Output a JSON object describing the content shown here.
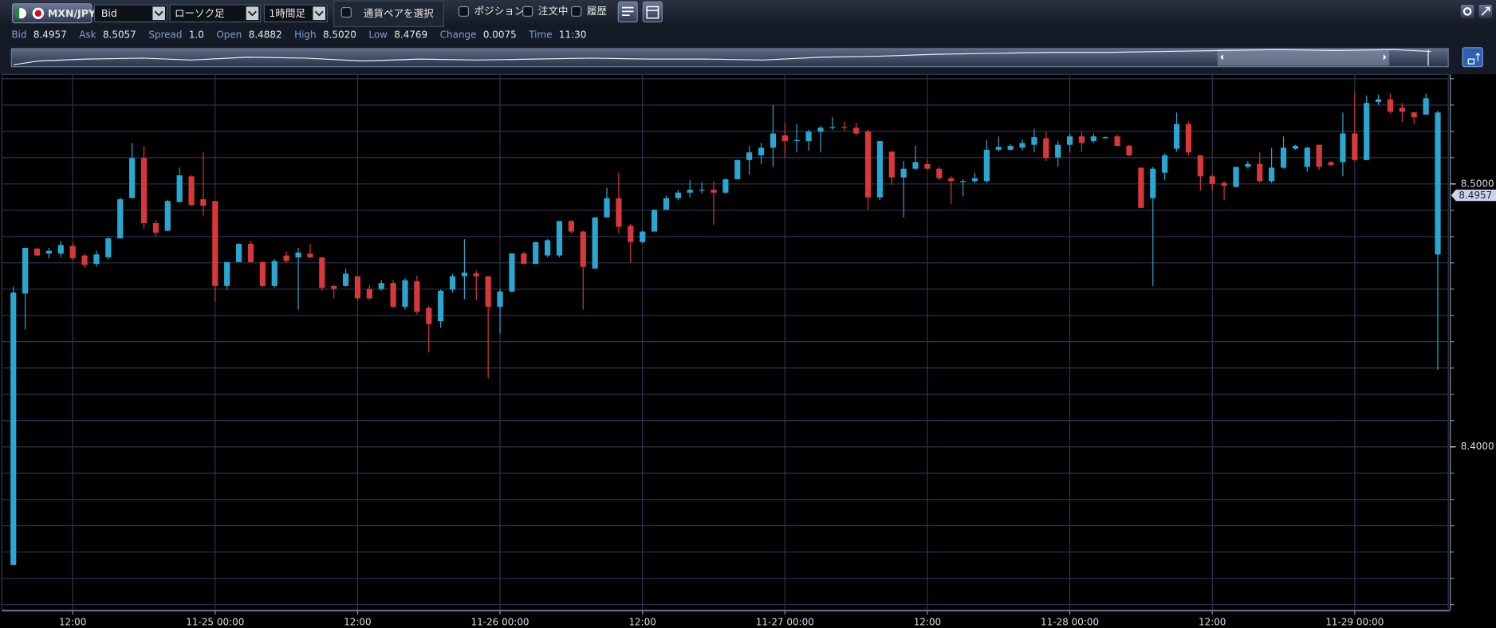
{
  "toolbar": {
    "symbol": "MXN/JPY",
    "price_type": "Bid",
    "chart_type": "ローソク足",
    "timeframe": "1時間足",
    "pair_select": "通貨ペアを選択",
    "toggles": [
      "ポジション",
      "注文中",
      "履歴"
    ]
  },
  "quote": [
    {
      "label": "Bid",
      "value": "8.4957"
    },
    {
      "label": "Ask",
      "value": "8.5057"
    },
    {
      "label": "Spread",
      "value": "1.0"
    },
    {
      "label": "Open",
      "value": "8.4882"
    },
    {
      "label": "High",
      "value": "8.5020"
    },
    {
      "label": "Low",
      "value": "8.4769"
    },
    {
      "label": "Change",
      "value": "0.0075"
    },
    {
      "label": "Time",
      "value": "11:30"
    }
  ],
  "chart_data": {
    "type": "candlestick",
    "categories": [
      null,
      null,
      null,
      null,
      null,
      "12:00",
      null,
      null,
      null,
      null,
      null,
      null,
      null,
      null,
      null,
      null,
      null,
      "11-25 00:00",
      null,
      null,
      null,
      null,
      null,
      null,
      null,
      null,
      null,
      null,
      null,
      "12:00",
      null,
      null,
      null,
      null,
      null,
      null,
      null,
      null,
      null,
      null,
      null,
      "11-26 00:00",
      null,
      null,
      null,
      null,
      null,
      null,
      null,
      null,
      null,
      null,
      null,
      "12:00",
      null,
      null,
      null,
      null,
      null,
      null,
      null,
      null,
      null,
      null,
      null,
      "11-27 00:00",
      null,
      null,
      null,
      null,
      null,
      null,
      null,
      null,
      null,
      null,
      null,
      "12:00",
      null,
      null,
      null,
      null,
      null,
      null,
      null,
      null,
      null,
      null,
      null,
      "11-28 00:00",
      null,
      null,
      null,
      null,
      null,
      null,
      null,
      null,
      null,
      null,
      null,
      "12:00",
      null,
      null,
      null,
      null,
      null,
      null,
      null,
      null,
      null,
      null,
      null,
      "11-29 00:00",
      null,
      null,
      null,
      null,
      null,
      null,
      null
    ],
    "open": [
      8.3551,
      8.4583,
      8.4754,
      8.4735,
      8.4735,
      8.4764,
      8.4728,
      8.4696,
      8.4721,
      8.4793,
      8.4946,
      8.5098,
      8.4851,
      8.4822,
      8.4931,
      8.5029,
      8.4942,
      8.4935,
      8.4612,
      8.4703,
      8.4772,
      8.4703,
      8.4612,
      8.4728,
      8.4721,
      8.4735,
      8.4721,
      8.4612,
      8.4612,
      8.4649,
      8.4601,
      8.4601,
      8.4623,
      8.4533,
      8.463,
      8.4529,
      8.4478,
      8.4598,
      8.4649,
      8.466,
      8.4649,
      8.4533,
      8.4591,
      8.4736,
      8.4696,
      8.4728,
      8.4728,
      8.4859,
      8.4819,
      8.4678,
      8.4873,
      8.4946,
      8.4841,
      8.4779,
      8.4819,
      8.4902,
      8.4946,
      8.4967,
      8.4978,
      8.4978,
      8.4967,
      8.5018,
      8.5091,
      8.5109,
      8.5138,
      8.5185,
      8.5163,
      8.5163,
      8.5199,
      8.5214,
      8.5217,
      8.5214,
      8.5199,
      8.4949,
      8.5123,
      8.5025,
      8.5058,
      8.5076,
      8.5058,
      8.5022,
      8.5011,
      8.5011,
      8.5011,
      8.513,
      8.513,
      8.5138,
      8.5149,
      8.5174,
      8.5101,
      8.5149,
      8.5181,
      8.5163,
      8.5178,
      8.5181,
      8.5145,
      8.5062,
      8.4946,
      8.5043,
      8.5134,
      8.5228,
      8.5109,
      8.5029,
      8.5004,
      8.4989,
      8.5065,
      8.5076,
      8.5011,
      8.5062,
      8.5134,
      8.5065,
      8.5149,
      8.5083,
      8.5083,
      8.5192,
      8.5091,
      8.5312,
      8.5322,
      8.529,
      8.5272,
      8.5264,
      8.4732
    ],
    "high": [
      8.461,
      8.4757,
      8.4757,
      8.4757,
      8.4783,
      8.4775,
      8.4735,
      8.4746,
      8.4797,
      8.4949,
      8.5156,
      8.5145,
      8.4862,
      8.494,
      8.5062,
      8.5033,
      8.512,
      8.4935,
      8.4703,
      8.4775,
      8.4783,
      8.4706,
      8.4714,
      8.4743,
      8.4757,
      8.4772,
      8.4721,
      8.4616,
      8.4678,
      8.4649,
      8.4616,
      8.4634,
      8.4634,
      8.4641,
      8.4652,
      8.4536,
      8.4598,
      8.4659,
      8.479,
      8.467,
      8.4649,
      8.4601,
      8.4736,
      8.4743,
      8.4779,
      8.479,
      8.4859,
      8.4862,
      8.4822,
      8.4873,
      8.4986,
      8.5043,
      8.4848,
      8.4822,
      8.4902,
      8.4957,
      8.4978,
      8.5014,
      8.5007,
      8.5011,
      8.5022,
      8.5091,
      8.5145,
      8.5156,
      8.5301,
      8.5232,
      8.5228,
      8.5207,
      8.5221,
      8.5254,
      8.5236,
      8.5232,
      8.5207,
      8.5163,
      8.5123,
      8.5087,
      8.5145,
      8.5094,
      8.5065,
      8.5029,
      8.5018,
      8.5043,
      8.5167,
      8.5181,
      8.5152,
      8.517,
      8.521,
      8.5199,
      8.5163,
      8.5192,
      8.5199,
      8.5192,
      8.5181,
      8.5188,
      8.5149,
      8.5062,
      8.5065,
      8.5116,
      8.5272,
      8.5236,
      8.5109,
      8.5036,
      8.5011,
      8.5065,
      8.5087,
      8.512,
      8.5138,
      8.5181,
      8.5149,
      8.5141,
      8.5149,
      8.5087,
      8.5272,
      8.5348,
      8.5337,
      8.534,
      8.5344,
      8.5308,
      8.5275,
      8.5344,
      8.5279
    ],
    "low": [
      8.3551,
      8.4446,
      8.4725,
      8.4717,
      8.4721,
      8.471,
      8.4681,
      8.4685,
      8.4714,
      8.4793,
      8.4946,
      8.483,
      8.4801,
      8.482,
      8.4931,
      8.4917,
      8.4877,
      8.4551,
      8.4598,
      8.4703,
      8.47,
      8.4609,
      8.4605,
      8.47,
      8.4522,
      8.4717,
      8.4594,
      8.4565,
      8.4609,
      8.4558,
      8.4558,
      8.4594,
      8.4529,
      8.4522,
      8.4504,
      8.4359,
      8.4453,
      8.4587,
      8.4562,
      8.4558,
      8.4261,
      8.4431,
      8.4587,
      8.4696,
      8.4696,
      8.4721,
      8.4721,
      8.4812,
      8.4522,
      8.4678,
      8.4873,
      8.4812,
      8.47,
      8.4775,
      8.4819,
      8.4902,
      8.4938,
      8.4949,
      8.4964,
      8.4844,
      8.4964,
      8.5018,
      8.5036,
      8.5076,
      8.5065,
      8.5101,
      8.512,
      8.5127,
      8.512,
      8.5207,
      8.5203,
      8.5185,
      8.4902,
      8.4938,
      8.4997,
      8.4873,
      8.5054,
      8.5054,
      8.5014,
      8.4924,
      8.4953,
      8.5004,
      8.5004,
      8.5123,
      8.5127,
      8.5127,
      8.512,
      8.5087,
      8.5065,
      8.512,
      8.5123,
      8.5156,
      8.517,
      8.5141,
      8.5105,
      8.4909,
      8.4612,
      8.5014,
      8.5123,
      8.5109,
      8.4975,
      8.4975,
      8.4938,
      8.4986,
      8.5058,
      8.5004,
      8.5004,
      8.5058,
      8.513,
      8.5047,
      8.5054,
      8.5068,
      8.5029,
      8.5087,
      8.5091,
      8.5301,
      8.5268,
      8.5236,
      8.5228,
      8.5264,
      8.4293
    ],
    "close": [
      8.4587,
      8.4757,
      8.4728,
      8.4746,
      8.4768,
      8.4717,
      8.4692,
      8.4732,
      8.4793,
      8.4942,
      8.5098,
      8.4851,
      8.4815,
      8.4935,
      8.5033,
      8.492,
      8.4917,
      8.4612,
      8.4703,
      8.4772,
      8.4703,
      8.4612,
      8.4707,
      8.4707,
      8.4739,
      8.4721,
      8.4605,
      8.4601,
      8.4659,
      8.4565,
      8.4565,
      8.4623,
      8.4533,
      8.4634,
      8.4514,
      8.4467,
      8.4594,
      8.4649,
      8.4663,
      8.4649,
      8.4533,
      8.4591,
      8.4736,
      8.4696,
      8.4779,
      8.4786,
      8.4859,
      8.4819,
      8.4685,
      8.4873,
      8.4946,
      8.4837,
      8.4779,
      8.4819,
      8.4902,
      8.4946,
      8.4967,
      8.4978,
      8.4978,
      8.4967,
      8.5018,
      8.5091,
      8.512,
      8.5138,
      8.5192,
      8.5163,
      8.5167,
      8.5199,
      8.5214,
      8.5217,
      8.5214,
      8.5192,
      8.4949,
      8.5163,
      8.5025,
      8.5058,
      8.5083,
      8.5058,
      8.5022,
      8.5011,
      8.5011,
      8.5022,
      8.513,
      8.5141,
      8.5145,
      8.5156,
      8.5178,
      8.5098,
      8.5149,
      8.5181,
      8.5156,
      8.5181,
      8.5178,
      8.5145,
      8.5109,
      8.4909,
      8.5058,
      8.5109,
      8.5228,
      8.512,
      8.5029,
      8.5,
      8.4993,
      8.5065,
      8.5076,
      8.5011,
      8.5062,
      8.5138,
      8.5145,
      8.5138,
      8.5065,
      8.5072,
      8.5192,
      8.5091,
      8.5308,
      8.5322,
      8.5275,
      8.5275,
      8.5254,
      8.5326,
      8.5272
    ],
    "up_color": "#2aa7d0",
    "down_color": "#d8383a",
    "ylim": [
      8.338,
      8.5417
    ],
    "yticks": [
      {
        "value": 8.4,
        "label": "8.4000"
      },
      {
        "value": 8.5,
        "label": "8.5000"
      }
    ],
    "ygrid": [
      8.34,
      8.35,
      8.36,
      8.37,
      8.38,
      8.39,
      8.4,
      8.41,
      8.42,
      8.43,
      8.44,
      8.45,
      8.46,
      8.47,
      8.48,
      8.49,
      8.5,
      8.51,
      8.52,
      8.53,
      8.54
    ],
    "grid": true,
    "price_marker": {
      "value": 8.4957,
      "label": "8.4957"
    }
  }
}
